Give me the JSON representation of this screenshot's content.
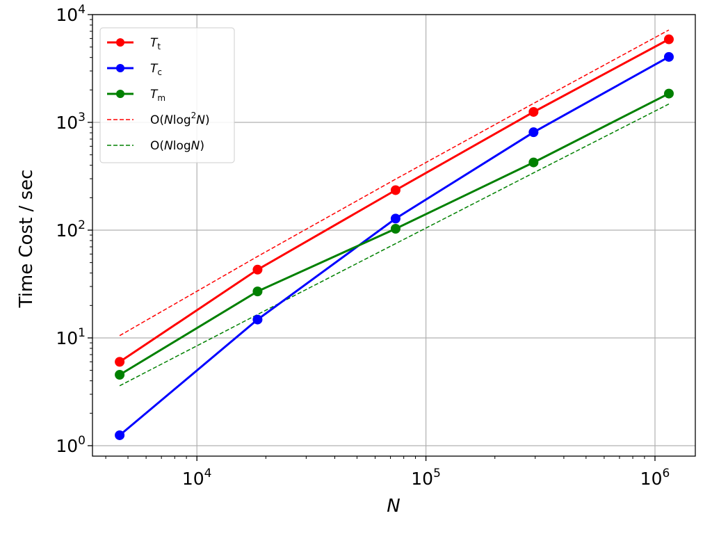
{
  "chart_data": {
    "type": "line",
    "xscale": "log",
    "yscale": "log",
    "xlabel": "N",
    "ylabel": "Time Cost / sec",
    "xlim": [
      3500,
      1500000
    ],
    "ylim": [
      0.8,
      10000
    ],
    "grid": true,
    "legend_position": "top-left",
    "x_tick_labels": [
      {
        "value": 10000,
        "base": "10",
        "exp": "4"
      },
      {
        "value": 100000,
        "base": "10",
        "exp": "5"
      },
      {
        "value": 1000000,
        "base": "10",
        "exp": "6"
      }
    ],
    "y_tick_labels": [
      {
        "value": 1,
        "base": "10",
        "exp": "0"
      },
      {
        "value": 10,
        "base": "10",
        "exp": "1"
      },
      {
        "value": 100,
        "base": "10",
        "exp": "2"
      },
      {
        "value": 1000,
        "base": "10",
        "exp": "3"
      },
      {
        "value": 10000,
        "base": "10",
        "exp": "4"
      }
    ],
    "x": [
      4600,
      18400,
      73700,
      295000,
      1150000
    ],
    "series": [
      {
        "key": "Tt",
        "color": "#ff0000",
        "style": "solid-marker",
        "legend": {
          "main": "T",
          "sub": "t"
        },
        "values": [
          6.0,
          43,
          235,
          1250,
          5900
        ]
      },
      {
        "key": "Tc",
        "color": "#0000ff",
        "style": "solid-marker",
        "legend": {
          "main": "T",
          "sub": "c"
        },
        "values": [
          1.25,
          14.8,
          128,
          810,
          4050
        ]
      },
      {
        "key": "Tm",
        "color": "#008000",
        "style": "solid-marker",
        "legend": {
          "main": "T",
          "sub": "m"
        },
        "values": [
          4.55,
          27,
          103,
          425,
          1850
        ]
      },
      {
        "key": "Onlog2n",
        "color": "#ff0000",
        "style": "dashed",
        "legend": {
          "pre": "O(",
          "n": "N",
          "mid": "log",
          "sup": "2",
          "n2": "N",
          "post": ")"
        },
        "values": [
          10.5,
          57,
          297,
          1500,
          7200
        ]
      },
      {
        "key": "Onlogn",
        "color": "#008000",
        "style": "dashed",
        "legend": {
          "pre": "O(",
          "n": "N",
          "mid": "log",
          "n2": "N",
          "post": ")"
        },
        "values": [
          3.6,
          16.5,
          75,
          340,
          1480
        ]
      }
    ]
  }
}
